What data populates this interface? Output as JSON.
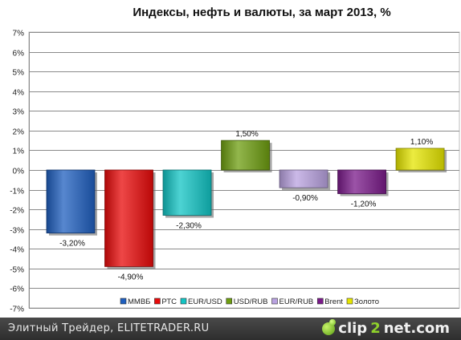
{
  "chart_data": {
    "type": "bar",
    "title": "Индексы, нефть и валюты, за март 2013, %",
    "categories": [
      "ММВБ",
      "РТС",
      "EUR/USD",
      "USD/RUB",
      "EUR/RUB",
      "Brent",
      "Золото"
    ],
    "values": [
      -3.2,
      -4.9,
      -2.3,
      1.5,
      -0.9,
      -1.2,
      1.1
    ],
    "value_labels": [
      "-3,20%",
      "-4,90%",
      "-2,30%",
      "1,50%",
      "-0,90%",
      "-1,20%",
      "1,10%"
    ],
    "colors": [
      "#1f5fbf",
      "#e80a0a",
      "#12c4c4",
      "#6e9e10",
      "#b9a2e0",
      "#7a1a8a",
      "#e6e600"
    ],
    "ylim": [
      -7,
      7
    ],
    "yticks": [
      7,
      6,
      5,
      4,
      3,
      2,
      1,
      0,
      -1,
      -2,
      -3,
      -4,
      -5,
      -6,
      -7
    ],
    "ytick_labels": [
      "7%",
      "6%",
      "5%",
      "4%",
      "3%",
      "2%",
      "1%",
      "0%",
      "-1%",
      "-2%",
      "-3%",
      "-4%",
      "-5%",
      "-6%",
      "-7%"
    ],
    "grid": true,
    "legend_position": "bottom"
  },
  "footer": {
    "text": "Элитный Трейдер, ELITETRADER.RU",
    "brand_left": "clip",
    "brand_mid": "2",
    "brand_right": "net.com"
  }
}
